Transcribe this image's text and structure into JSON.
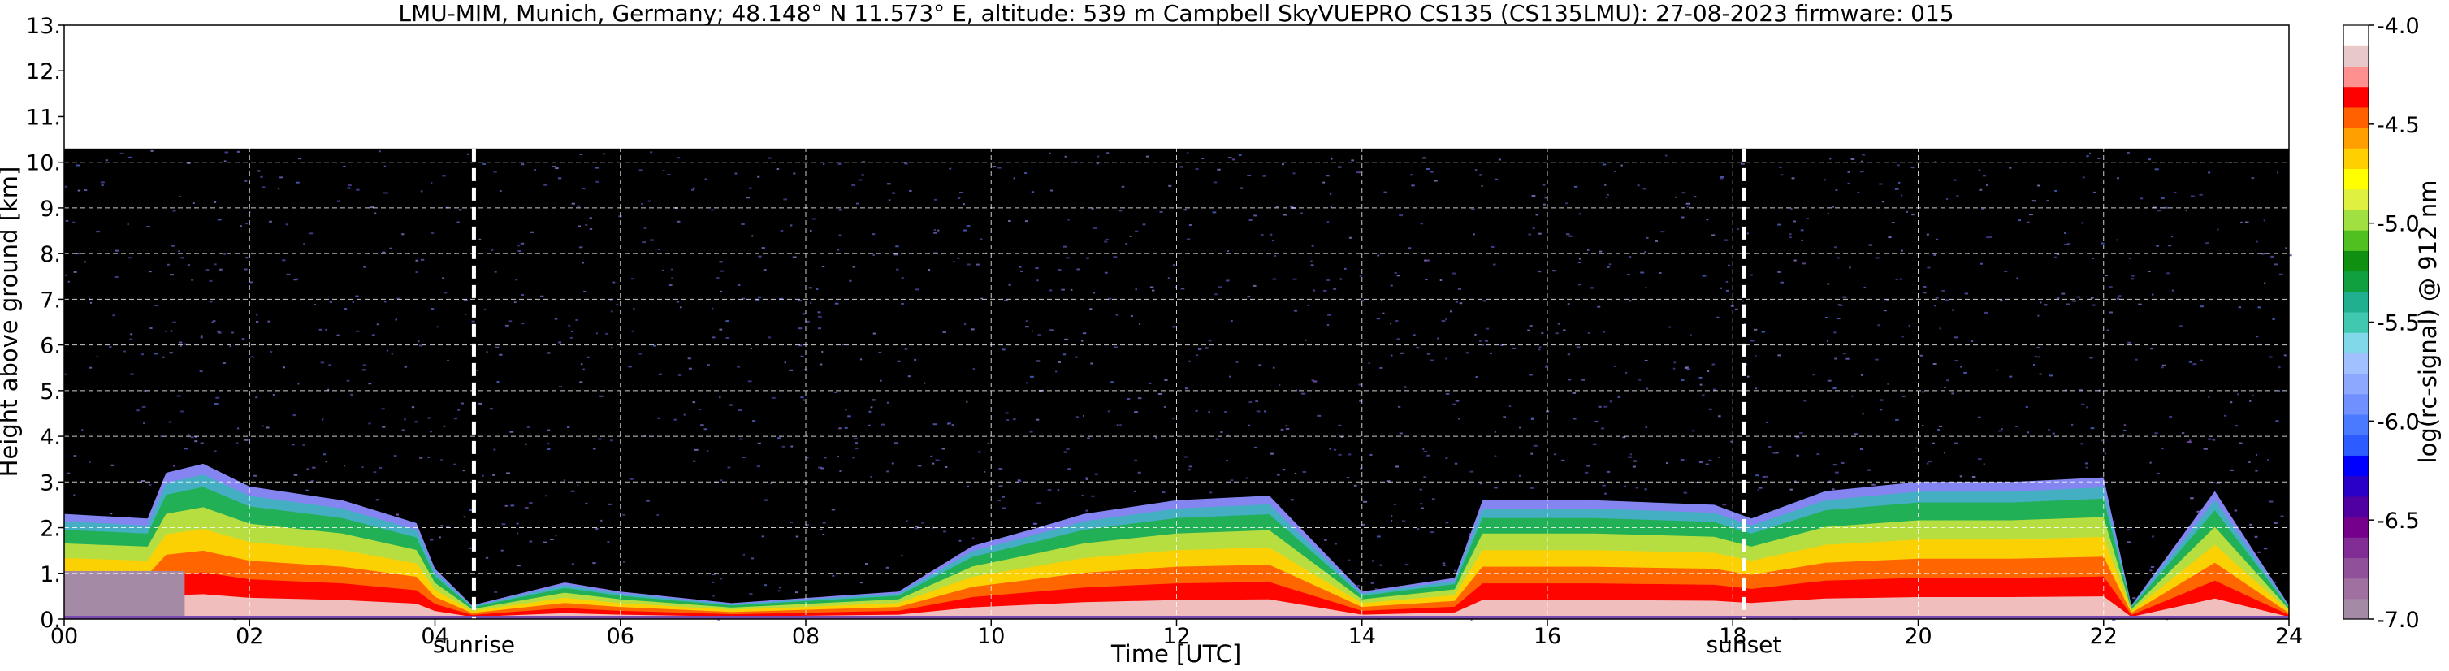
{
  "chart_data": {
    "type": "heatmap",
    "title": "LMU-MIM, Munich, Germany; 48.148° N 11.573° E, altitude: 539 m    Campbell SkyVUEPRO CS135 (CS135LMU): 27-08-2023    firmware: 015",
    "xlabel": "Time [UTC]",
    "ylabel": "Height above ground [km]",
    "colorbar_label": "log(rc-signal) @ 912 nm",
    "xlim": [
      0,
      24
    ],
    "ylim": [
      0,
      13
    ],
    "clim": [
      -7.0,
      -4.0
    ],
    "x_ticks": [
      {
        "value": 0,
        "label": "00"
      },
      {
        "value": 2,
        "label": "02"
      },
      {
        "value": 4,
        "label": "04"
      },
      {
        "value": 6,
        "label": "06"
      },
      {
        "value": 8,
        "label": "08"
      },
      {
        "value": 10,
        "label": "10"
      },
      {
        "value": 12,
        "label": "12"
      },
      {
        "value": 14,
        "label": "14"
      },
      {
        "value": 16,
        "label": "16"
      },
      {
        "value": 18,
        "label": "18"
      },
      {
        "value": 20,
        "label": "20"
      },
      {
        "value": 22,
        "label": "22"
      },
      {
        "value": 24,
        "label": "24"
      }
    ],
    "y_ticks": [
      {
        "value": 0,
        "label": "0."
      },
      {
        "value": 1,
        "label": "1."
      },
      {
        "value": 2,
        "label": "2."
      },
      {
        "value": 3,
        "label": "3."
      },
      {
        "value": 4,
        "label": "4."
      },
      {
        "value": 5,
        "label": "5."
      },
      {
        "value": 6,
        "label": "6."
      },
      {
        "value": 7,
        "label": "7."
      },
      {
        "value": 8,
        "label": "8."
      },
      {
        "value": 9,
        "label": "9."
      },
      {
        "value": 10,
        "label": "10."
      },
      {
        "value": 11,
        "label": "11."
      },
      {
        "value": 12,
        "label": "12."
      },
      {
        "value": 13,
        "label": "13."
      }
    ],
    "colorbar_ticks": [
      {
        "value": -4.0,
        "label": "-4.0"
      },
      {
        "value": -4.5,
        "label": "-4.5"
      },
      {
        "value": -5.0,
        "label": "-5.0"
      },
      {
        "value": -5.5,
        "label": "-5.5"
      },
      {
        "value": -6.0,
        "label": "-6.0"
      },
      {
        "value": -6.5,
        "label": "-6.5"
      },
      {
        "value": -7.0,
        "label": "-7.0"
      }
    ],
    "colorbar_colors": [
      "#a58aa5",
      "#a070a0",
      "#90509a",
      "#822c96",
      "#74008c",
      "#5000a0",
      "#2800c8",
      "#0000ff",
      "#2c5cff",
      "#4a7aff",
      "#7090ff",
      "#8ca8ff",
      "#a0c0ff",
      "#80d8e8",
      "#40c8b0",
      "#20b090",
      "#10a040",
      "#109010",
      "#50c020",
      "#a0e040",
      "#e0f040",
      "#ffff00",
      "#ffd000",
      "#ffa000",
      "#ff6000",
      "#ff0000",
      "#ff9090",
      "#e8c8c8",
      "#ffffff"
    ],
    "grid": true,
    "grid_style": "white dashed",
    "data_range_max_height_km": 10.3,
    "annotations": [
      {
        "x": 4.42,
        "label": "sunrise"
      },
      {
        "x": 18.12,
        "label": "sunset"
      }
    ],
    "aerosol_layer_top_km": [
      {
        "x": 0.0,
        "top": 2.3
      },
      {
        "x": 0.9,
        "top": 2.2
      },
      {
        "x": 1.1,
        "top": 3.2
      },
      {
        "x": 1.5,
        "top": 3.4
      },
      {
        "x": 2.0,
        "top": 2.9
      },
      {
        "x": 3.0,
        "top": 2.6
      },
      {
        "x": 3.8,
        "top": 2.1
      },
      {
        "x": 4.0,
        "top": 1.1
      },
      {
        "x": 4.4,
        "top": 0.3
      },
      {
        "x": 5.4,
        "top": 0.8
      },
      {
        "x": 6.0,
        "top": 0.6
      },
      {
        "x": 7.2,
        "top": 0.35
      },
      {
        "x": 9.0,
        "top": 0.6
      },
      {
        "x": 9.8,
        "top": 1.6
      },
      {
        "x": 10.5,
        "top": 2.0
      },
      {
        "x": 11.0,
        "top": 2.3
      },
      {
        "x": 12.0,
        "top": 2.6
      },
      {
        "x": 13.0,
        "top": 2.7
      },
      {
        "x": 14.0,
        "top": 0.6
      },
      {
        "x": 15.0,
        "top": 0.9
      },
      {
        "x": 15.3,
        "top": 2.6
      },
      {
        "x": 16.5,
        "top": 2.6
      },
      {
        "x": 17.8,
        "top": 2.5
      },
      {
        "x": 18.2,
        "top": 2.2
      },
      {
        "x": 19.0,
        "top": 2.8
      },
      {
        "x": 20.0,
        "top": 3.0
      },
      {
        "x": 21.0,
        "top": 3.0
      },
      {
        "x": 22.0,
        "top": 3.1
      },
      {
        "x": 22.3,
        "top": 0.3
      },
      {
        "x": 23.2,
        "top": 2.8
      },
      {
        "x": 24.0,
        "top": 0.3
      }
    ]
  }
}
